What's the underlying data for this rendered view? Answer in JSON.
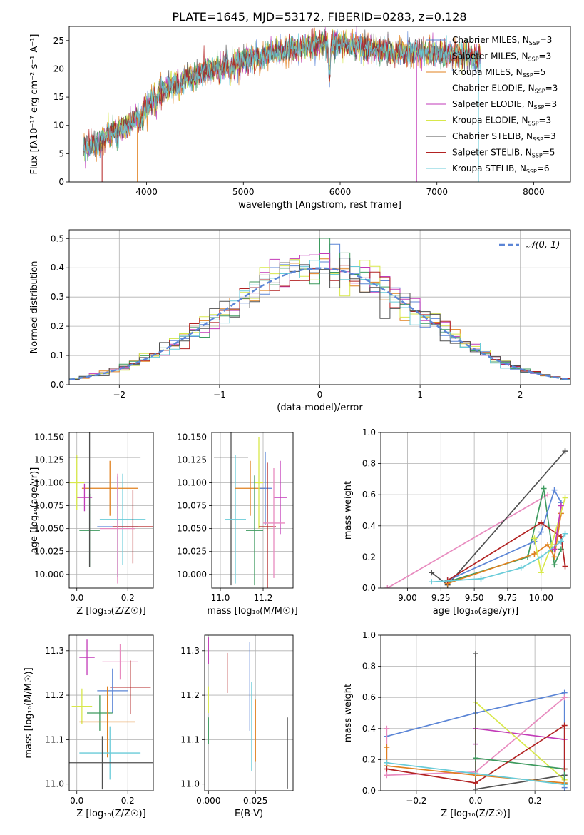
{
  "colors": [
    "#5b85d6",
    "#e0801f",
    "#3d9a5e",
    "#c23ab8",
    "#d8e84a",
    "#8c8c8c",
    "#b22222",
    "#68cbd8",
    "#e88bbf",
    "#505050",
    "#3b6b5b"
  ],
  "chart_data": [
    {
      "panel": "spectrum",
      "type": "line",
      "title": "PLATE=1645, MJD=53172, FIBERID=0283, z=0.128",
      "xlabel": "wavelength [Angstrom, rest frame]",
      "ylabel": "Flux [fλ10⁻¹⁷ erg cm⁻² s⁻¹ A⁻¹]",
      "xlim": [
        3200,
        8380
      ],
      "ylim": [
        0,
        27.5
      ],
      "xticks": [
        4000,
        5000,
        6000,
        7000,
        8000
      ],
      "yticks": [
        0,
        5,
        10,
        15,
        20,
        25
      ],
      "spectrum_range": [
        3350,
        7450
      ],
      "continuum_knots": [
        [
          3350,
          6.0
        ],
        [
          3500,
          6.8
        ],
        [
          3650,
          9.0
        ],
        [
          3800,
          10.0
        ],
        [
          3950,
          12.0
        ],
        [
          4100,
          15.5
        ],
        [
          4300,
          17.5
        ],
        [
          4600,
          19.5
        ],
        [
          4900,
          21.0
        ],
        [
          5200,
          22.5
        ],
        [
          5600,
          23.8
        ],
        [
          5900,
          24.8
        ],
        [
          6200,
          23.8
        ],
        [
          6500,
          23.0
        ],
        [
          6800,
          23.0
        ],
        [
          7100,
          22.6
        ],
        [
          7450,
          22.0
        ]
      ],
      "dips": [
        [
          3700,
          7.5
        ],
        [
          3933,
          10.5
        ],
        [
          4101,
          14.0
        ],
        [
          4340,
          16.0
        ],
        [
          4861,
          18.5
        ],
        [
          5175,
          20.5
        ],
        [
          5890,
          18.5
        ],
        [
          6563,
          22.0
        ]
      ],
      "series": [
        {
          "name": "Chabrier MILES",
          "nssp": "3",
          "color_index": 0
        },
        {
          "name": "Salpeter MILES",
          "nssp": "3",
          "color_index": 1
        },
        {
          "name": "Kroupa MILES",
          "nssp": "5",
          "color_index": 1
        },
        {
          "name": "Chabrier ELODIE",
          "nssp": "3",
          "color_index": 2
        },
        {
          "name": "Salpeter ELODIE",
          "nssp": "3",
          "color_index": 3
        },
        {
          "name": "Kroupa ELODIE",
          "nssp": "3",
          "color_index": 4
        },
        {
          "name": "Chabrier STELIB",
          "nssp": "3",
          "color_index": 9
        },
        {
          "name": "Salpeter STELIB",
          "nssp": "5",
          "color_index": 6
        },
        {
          "name": "Kroupa STELIB",
          "nssp": "6",
          "color_index": 7
        }
      ],
      "legend_location": "upper right"
    },
    {
      "panel": "residuals",
      "type": "area",
      "xlabel": "(data-model)/error",
      "ylabel": "Normed distribution",
      "xlim": [
        -2.5,
        2.5
      ],
      "ylim": [
        0,
        0.53
      ],
      "xticks": [
        -2,
        -1,
        0,
        1,
        2
      ],
      "yticks": [
        0.0,
        0.1,
        0.2,
        0.3,
        0.4,
        0.5
      ],
      "bin_width": 0.1,
      "gaussian_label": "𝒩(0, 1)",
      "hist_colors": [
        0,
        1,
        2,
        3,
        4,
        6,
        7,
        9
      ],
      "legend_location": "upper right"
    },
    {
      "panel": "age-vs-Z",
      "type": "scatter",
      "xlabel": "Z [log₁₀(Z/Z☉)]",
      "ylabel": "age  [log₁₀(age/yr)]",
      "xlim": [
        -0.03,
        0.3
      ],
      "ylim": [
        9.985,
        10.155
      ],
      "xticks": [
        0.0,
        0.2
      ],
      "yticks": [
        10.0,
        10.025,
        10.05,
        10.075,
        10.1,
        10.125,
        10.15
      ],
      "points": [
        {
          "x": 0.18,
          "y": 10.06,
          "xerr": 0.09,
          "yerr": 0.05,
          "c": 7
        },
        {
          "x": 0.13,
          "y": 10.094,
          "xerr": 0.11,
          "yerr": 0.03,
          "c": 1
        },
        {
          "x": 0.16,
          "y": 10.052,
          "xerr": 0.08,
          "yerr": 0.055,
          "c": 0
        },
        {
          "x": 0.22,
          "y": 10.052,
          "xerr": 0.08,
          "yerr": 0.04,
          "c": 6
        },
        {
          "x": 0.05,
          "y": 10.048,
          "xerr": 0.04,
          "yerr": 0.04,
          "c": 2
        },
        {
          "x": 0.03,
          "y": 10.084,
          "xerr": 0.03,
          "yerr": 0.015,
          "c": 3
        },
        {
          "x": 0.0,
          "y": 10.1,
          "xerr": 0.03,
          "yerr": 0.03,
          "c": 4
        },
        {
          "x": 0.05,
          "y": 10.128,
          "xerr": 0.2,
          "yerr": 0.12,
          "c": 9
        },
        {
          "x": 0.16,
          "y": 10.05,
          "xerr": 0.07,
          "yerr": 0.06,
          "c": 8
        }
      ]
    },
    {
      "panel": "age-vs-mass",
      "type": "scatter",
      "xlabel": "mass [log₁₀(M/M☉)]",
      "ylabel": "",
      "xlim": [
        10.96,
        11.34
      ],
      "ylim": [
        9.985,
        10.155
      ],
      "xticks": [
        11.0,
        11.2
      ],
      "yticks": [
        10.0,
        10.025,
        10.05,
        10.075,
        10.1,
        10.125,
        10.15
      ],
      "points": [
        {
          "x": 11.05,
          "y": 10.128,
          "xerr": 0.08,
          "yerr": 0.14,
          "c": 9
        },
        {
          "x": 11.07,
          "y": 10.06,
          "xerr": 0.05,
          "yerr": 0.07,
          "c": 7
        },
        {
          "x": 11.14,
          "y": 10.094,
          "xerr": 0.07,
          "yerr": 0.03,
          "c": 1
        },
        {
          "x": 11.21,
          "y": 10.094,
          "xerr": 0.03,
          "yerr": 0.04,
          "c": 0
        },
        {
          "x": 11.16,
          "y": 10.048,
          "xerr": 0.04,
          "yerr": 0.06,
          "c": 2
        },
        {
          "x": 11.18,
          "y": 10.1,
          "xerr": 0.02,
          "yerr": 0.05,
          "c": 4
        },
        {
          "x": 11.22,
          "y": 10.052,
          "xerr": 0.04,
          "yerr": 0.07,
          "c": 6
        },
        {
          "x": 11.28,
          "y": 10.084,
          "xerr": 0.03,
          "yerr": 0.04,
          "c": 3
        },
        {
          "x": 11.25,
          "y": 10.056,
          "xerr": 0.05,
          "yerr": 0.06,
          "c": 8
        }
      ]
    },
    {
      "panel": "weight-vs-age",
      "type": "line",
      "xlabel": "age  [log₁₀(age/yr)]",
      "ylabel": "mass weight",
      "xlim": [
        8.8,
        10.22
      ],
      "ylim": [
        0,
        1
      ],
      "xticks": [
        9.0,
        9.25,
        9.5,
        9.75,
        10.0
      ],
      "yticks": [
        0.0,
        0.2,
        0.4,
        0.6,
        0.8,
        1.0
      ],
      "series": [
        {
          "c": 8,
          "x": [
            8.85,
            10.05
          ],
          "y": [
            0.0,
            0.6
          ]
        },
        {
          "c": 9,
          "x": [
            9.18,
            9.3,
            10.18
          ],
          "y": [
            0.1,
            0.02,
            0.88
          ]
        },
        {
          "c": 2,
          "x": [
            9.3,
            9.9,
            10.02,
            10.1,
            10.15
          ],
          "y": [
            0.04,
            0.2,
            0.64,
            0.15,
            0.25
          ]
        },
        {
          "c": 0,
          "x": [
            9.3,
            9.95,
            10.0,
            10.1,
            10.15
          ],
          "y": [
            0.05,
            0.3,
            0.36,
            0.63,
            0.55
          ]
        },
        {
          "c": 1,
          "x": [
            9.3,
            9.95,
            10.05,
            10.1,
            10.15
          ],
          "y": [
            0.03,
            0.22,
            0.28,
            0.2,
            0.48
          ]
        },
        {
          "c": 6,
          "x": [
            9.3,
            10.0,
            10.15,
            10.18
          ],
          "y": [
            0.05,
            0.42,
            0.33,
            0.14
          ]
        },
        {
          "c": 4,
          "x": [
            9.95,
            10.0,
            10.08,
            10.18
          ],
          "y": [
            0.32,
            0.1,
            0.28,
            0.58
          ]
        },
        {
          "c": 7,
          "x": [
            9.18,
            9.55,
            9.85,
            10.0,
            10.15,
            10.18
          ],
          "y": [
            0.04,
            0.06,
            0.13,
            0.2,
            0.3,
            0.35
          ]
        },
        {
          "c": 3,
          "x": [
            10.1,
            10.15
          ],
          "y": [
            0.25,
            0.53
          ]
        }
      ]
    },
    {
      "panel": "mass-vs-Z",
      "type": "scatter",
      "xlabel": "Z [log₁₀(Z/Z☉)]",
      "ylabel": "mass [log₁₀(M/M☉)]",
      "xlim": [
        -0.03,
        0.3
      ],
      "ylim": [
        10.985,
        11.335
      ],
      "xticks": [
        0.0,
        0.2
      ],
      "yticks": [
        11.0,
        11.1,
        11.2,
        11.3
      ],
      "points": [
        {
          "x": 0.04,
          "y": 11.285,
          "xerr": 0.03,
          "yerr": 0.04,
          "c": 3
        },
        {
          "x": 0.17,
          "y": 11.275,
          "xerr": 0.07,
          "yerr": 0.04,
          "c": 8
        },
        {
          "x": 0.21,
          "y": 11.218,
          "xerr": 0.08,
          "yerr": 0.06,
          "c": 6
        },
        {
          "x": 0.14,
          "y": 11.21,
          "xerr": 0.06,
          "yerr": 0.05,
          "c": 0
        },
        {
          "x": 0.02,
          "y": 11.175,
          "xerr": 0.04,
          "yerr": 0.04,
          "c": 4
        },
        {
          "x": 0.09,
          "y": 11.16,
          "xerr": 0.05,
          "yerr": 0.04,
          "c": 2
        },
        {
          "x": 0.12,
          "y": 11.14,
          "xerr": 0.11,
          "yerr": 0.08,
          "c": 1
        },
        {
          "x": 0.13,
          "y": 11.07,
          "xerr": 0.12,
          "yerr": 0.06,
          "c": 7
        },
        {
          "x": 0.1,
          "y": 11.048,
          "xerr": 0.2,
          "yerr": 0.06,
          "c": 9
        }
      ]
    },
    {
      "panel": "mass-vs-ebv",
      "type": "scatter",
      "xlabel": "E(B-V)",
      "ylabel": "",
      "xlim": [
        -0.002,
        0.045
      ],
      "ylim": [
        10.985,
        11.335
      ],
      "xticks": [
        0.0,
        0.025
      ],
      "xtick_labels": [
        "0.000",
        "0.025"
      ],
      "yticks": [
        11.0,
        11.1,
        11.2,
        11.3
      ],
      "points": [
        {
          "x": 0.0,
          "y": 11.3,
          "xerr": 0,
          "yerr": 0.03,
          "c": 3
        },
        {
          "x": 0.0,
          "y": 11.19,
          "xerr": 0,
          "yerr": 0.03,
          "c": 4
        },
        {
          "x": 0.0,
          "y": 11.12,
          "xerr": 0,
          "yerr": 0.03,
          "c": 2
        },
        {
          "x": 0.01,
          "y": 11.25,
          "xerr": 0,
          "yerr": 0.045,
          "c": 6
        },
        {
          "x": 0.022,
          "y": 11.22,
          "xerr": 0,
          "yerr": 0.1,
          "c": 0
        },
        {
          "x": 0.023,
          "y": 11.13,
          "xerr": 0,
          "yerr": 0.1,
          "c": 7
        },
        {
          "x": 0.025,
          "y": 11.12,
          "xerr": 0,
          "yerr": 0.07,
          "c": 1
        },
        {
          "x": 0.042,
          "y": 11.07,
          "xerr": 0,
          "yerr": 0.08,
          "c": 9
        }
      ]
    },
    {
      "panel": "weight-vs-Z",
      "type": "line",
      "xlabel": "Z [log₁₀(Z/Z☉)]",
      "ylabel": "mass weight",
      "xlim": [
        -0.32,
        0.32
      ],
      "ylim": [
        0,
        1
      ],
      "xticks": [
        -0.2,
        0.0,
        0.2
      ],
      "yticks": [
        0.0,
        0.2,
        0.4,
        0.6,
        0.8,
        1.0
      ],
      "series": [
        {
          "c": 0,
          "x": [
            -0.3,
            0.0,
            0.3,
            0.3
          ],
          "y": [
            0.35,
            0.5,
            0.63,
            0.02
          ]
        },
        {
          "c": 8,
          "x": [
            -0.3,
            -0.3,
            0.0,
            0.3
          ],
          "y": [
            0.4,
            0.1,
            0.12,
            0.6
          ]
        },
        {
          "c": 3,
          "x": [
            0.0,
            0.0,
            0.3
          ],
          "y": [
            0.3,
            0.4,
            0.33
          ]
        },
        {
          "c": 4,
          "x": [
            0.0,
            0.0,
            0.3
          ],
          "y": [
            0.1,
            0.57,
            0.07
          ]
        },
        {
          "c": 9,
          "x": [
            0.0,
            0.0,
            0.3,
            0.3
          ],
          "y": [
            0.88,
            0.01,
            0.1,
            0.04
          ]
        },
        {
          "c": 2,
          "x": [
            0.0,
            0.3,
            0.3
          ],
          "y": [
            0.21,
            0.14,
            0.05
          ]
        },
        {
          "c": 1,
          "x": [
            -0.3,
            -0.3,
            0.0,
            0.3
          ],
          "y": [
            0.28,
            0.16,
            0.1,
            0.05
          ]
        },
        {
          "c": 6,
          "x": [
            -0.3,
            0.0,
            0.3,
            0.3
          ],
          "y": [
            0.14,
            0.05,
            0.42,
            0.14
          ]
        },
        {
          "c": 7,
          "x": [
            -0.3,
            0.0,
            0.3
          ],
          "y": [
            0.18,
            0.11,
            0.04
          ]
        }
      ]
    }
  ]
}
